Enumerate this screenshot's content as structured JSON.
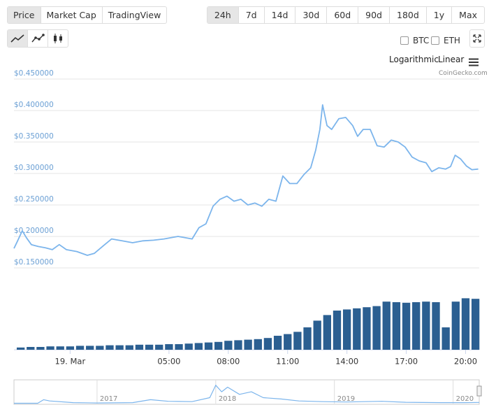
{
  "tabs": [
    "Price",
    "Market Cap",
    "TradingView"
  ],
  "ranges": [
    "24h",
    "7d",
    "14d",
    "30d",
    "60d",
    "90d",
    "180d",
    "1y",
    "Max"
  ],
  "compare": [
    "BTC",
    "ETH"
  ],
  "scales": [
    "Logarithmic",
    "Linear"
  ],
  "credit": "CoinGecko.com",
  "chart_data": [
    {
      "type": "line",
      "color": "#7cb5ec",
      "grid": true,
      "x": [
        -2.84,
        -2.67,
        -2.42,
        -2.21,
        -1.96,
        -1.61,
        -1.25,
        -0.9,
        -0.55,
        -0.19,
        0.34,
        0.87,
        1.22,
        1.75,
        2.1,
        2.63,
        3.16,
        3.69,
        4.22,
        4.75,
        5.11,
        5.46,
        5.81,
        6.17,
        6.52,
        6.87,
        7.23,
        7.58,
        7.93,
        8.29,
        8.64,
        8.99,
        9.35,
        9.7,
        10.05,
        10.41,
        10.76,
        11.11,
        11.47,
        11.82,
        12.17,
        12.42,
        12.63,
        12.77,
        12.99,
        13.23,
        13.59,
        13.94,
        14.29,
        14.54,
        14.82,
        15.18,
        15.53,
        15.88,
        16.24,
        16.59,
        16.94,
        17.3,
        17.65,
        18.0,
        18.29,
        18.64,
        18.99,
        19.24,
        19.47,
        19.75,
        20.04,
        20.32,
        20.64
      ],
      "values": [
        0.181,
        0.192,
        0.209,
        0.198,
        0.187,
        0.184,
        0.182,
        0.179,
        0.187,
        0.179,
        0.176,
        0.17,
        0.173,
        0.187,
        0.196,
        0.193,
        0.19,
        0.193,
        0.194,
        0.196,
        0.198,
        0.2,
        0.198,
        0.196,
        0.214,
        0.22,
        0.248,
        0.259,
        0.264,
        0.256,
        0.259,
        0.25,
        0.253,
        0.248,
        0.259,
        0.256,
        0.296,
        0.284,
        0.284,
        0.298,
        0.309,
        0.337,
        0.37,
        0.409,
        0.376,
        0.37,
        0.387,
        0.389,
        0.376,
        0.359,
        0.37,
        0.37,
        0.344,
        0.342,
        0.353,
        0.35,
        0.342,
        0.326,
        0.32,
        0.317,
        0.303,
        0.309,
        0.307,
        0.311,
        0.329,
        0.323,
        0.312,
        0.306,
        0.307
      ],
      "xlim": [
        -2.84,
        20.69
      ],
      "xticks": [
        {
          "value": 0,
          "label": "19. Mar"
        },
        {
          "value": 5,
          "label": "05:00"
        },
        {
          "value": 8,
          "label": "08:00"
        },
        {
          "value": 11,
          "label": "11:00"
        },
        {
          "value": 14,
          "label": "14:00"
        },
        {
          "value": 17,
          "label": "17:00"
        },
        {
          "value": 20,
          "label": "20:00"
        }
      ],
      "ylim": [
        0.15,
        0.45
      ],
      "yticks": [
        {
          "value": 0.15,
          "label": "$0.150000"
        },
        {
          "value": 0.2,
          "label": "$0.200000"
        },
        {
          "value": 0.25,
          "label": "$0.250000"
        },
        {
          "value": 0.3,
          "label": "$0.300000"
        },
        {
          "value": 0.35,
          "label": "$0.350000"
        },
        {
          "value": 0.4,
          "label": "$0.400000"
        },
        {
          "value": 0.45,
          "label": "$0.450000"
        }
      ]
    },
    {
      "type": "bar",
      "color": "#2b5f91",
      "x": [
        -2.5,
        -2,
        -1.5,
        -1,
        -0.5,
        0,
        0.5,
        1,
        1.5,
        2,
        2.5,
        3,
        3.5,
        4,
        4.5,
        5,
        5.5,
        6,
        6.5,
        7,
        7.5,
        8,
        8.5,
        9,
        9.5,
        10,
        10.5,
        11,
        11.5,
        12,
        12.5,
        13,
        13.5,
        14,
        14.5,
        15,
        15.5,
        16,
        16.5,
        17,
        17.5,
        18,
        18.5,
        19,
        19.5,
        20,
        20.5
      ],
      "values": [
        4,
        5,
        5,
        6,
        6,
        6,
        7,
        7,
        7,
        8,
        8,
        8,
        9,
        9,
        9,
        10,
        10,
        11,
        12,
        13,
        14,
        16,
        17,
        18,
        19,
        21,
        25,
        28,
        32,
        40,
        52,
        62,
        70,
        72,
        74,
        76,
        78,
        86,
        85,
        84,
        85,
        86,
        85,
        40,
        86,
        92,
        91
      ],
      "xlim": [
        -2.84,
        20.69
      ],
      "ylim": [
        0,
        100
      ]
    },
    {
      "type": "line",
      "color": "#7cb5ec",
      "x": [
        2016.3,
        2016.5,
        2016.55,
        2016.6,
        2016.8,
        2017.0,
        2017.3,
        2017.45,
        2017.6,
        2017.8,
        2017.95,
        2018.0,
        2018.05,
        2018.1,
        2018.2,
        2018.3,
        2018.4,
        2018.55,
        2018.7,
        2018.9,
        2019.1,
        2019.4,
        2019.6,
        2019.9,
        2020.1,
        2020.22
      ],
      "values": [
        0.05,
        0.05,
        0.6,
        0.4,
        0.15,
        0.1,
        0.15,
        0.6,
        0.35,
        0.3,
        0.9,
        2.8,
        1.8,
        2.5,
        1.4,
        1.8,
        0.9,
        0.7,
        0.4,
        0.3,
        0.25,
        0.35,
        0.2,
        0.15,
        0.15,
        0.18
      ],
      "xlim": [
        2016.3,
        2020.22
      ],
      "ylim": [
        0,
        3.3
      ],
      "xticks": [
        2017,
        2018,
        2019,
        2020
      ]
    }
  ]
}
